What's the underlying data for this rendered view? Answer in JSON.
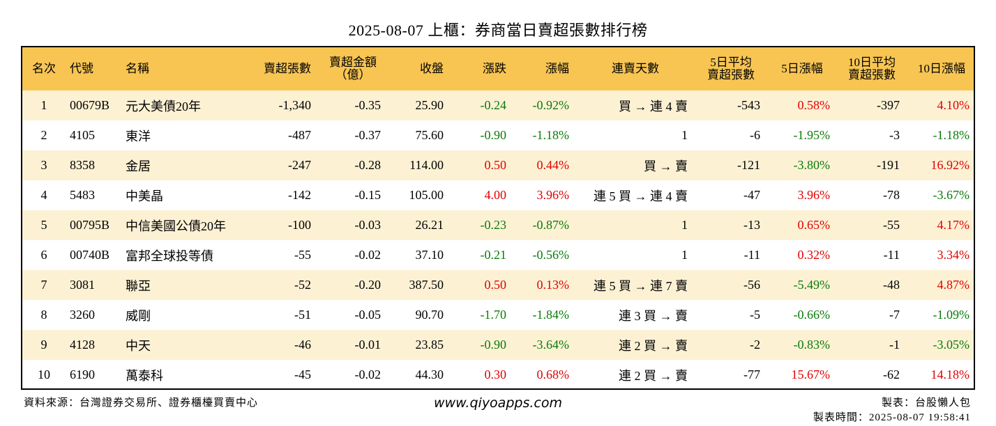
{
  "title": "2025-08-07 上櫃：券商當日賣超張數排行榜",
  "columns": [
    "名次",
    "代號",
    "名稱",
    "賣超張數",
    "賣超金額（億）",
    "收盤",
    "漲跌",
    "漲幅",
    "連賣天數",
    "5日平均 賣超張數",
    "5日漲幅",
    "10日平均 賣超張數",
    "10日漲幅"
  ],
  "header": {
    "rank": "名次",
    "code": "代號",
    "name": "名稱",
    "sell_lots": "賣超張數",
    "sell_amount_1": "賣超金額",
    "sell_amount_2": "（億）",
    "close": "收盤",
    "change": "漲跌",
    "change_pct": "漲幅",
    "streak": "連賣天數",
    "avg5_1": "5日平均",
    "avg5_2": "賣超張數",
    "chg5": "5日漲幅",
    "avg10_1": "10日平均",
    "avg10_2": "賣超張數",
    "chg10": "10日漲幅"
  },
  "rows": [
    {
      "rank": "1",
      "code": "00679B",
      "name": "元大美債20年",
      "sell_lots": "-1,340",
      "sell_amount": "-0.35",
      "close": "25.90",
      "change": "-0.24",
      "change_pct": "-0.92%",
      "streak": "買 → 連 4 賣",
      "avg5": "-543",
      "chg5": "0.58%",
      "avg10": "-397",
      "chg10": "4.10%"
    },
    {
      "rank": "2",
      "code": "4105",
      "name": "東洋",
      "sell_lots": "-487",
      "sell_amount": "-0.37",
      "close": "75.60",
      "change": "-0.90",
      "change_pct": "-1.18%",
      "streak": "1",
      "avg5": "-6",
      "chg5": "-1.95%",
      "avg10": "-3",
      "chg10": "-1.18%"
    },
    {
      "rank": "3",
      "code": "8358",
      "name": "金居",
      "sell_lots": "-247",
      "sell_amount": "-0.28",
      "close": "114.00",
      "change": "0.50",
      "change_pct": "0.44%",
      "streak": "買 → 賣",
      "avg5": "-121",
      "chg5": "-3.80%",
      "avg10": "-191",
      "chg10": "16.92%"
    },
    {
      "rank": "4",
      "code": "5483",
      "name": "中美晶",
      "sell_lots": "-142",
      "sell_amount": "-0.15",
      "close": "105.00",
      "change": "4.00",
      "change_pct": "3.96%",
      "streak": "連 5 買 → 連 4 賣",
      "avg5": "-47",
      "chg5": "3.96%",
      "avg10": "-78",
      "chg10": "-3.67%"
    },
    {
      "rank": "5",
      "code": "00795B",
      "name": "中信美國公債20年",
      "sell_lots": "-100",
      "sell_amount": "-0.03",
      "close": "26.21",
      "change": "-0.23",
      "change_pct": "-0.87%",
      "streak": "1",
      "avg5": "-13",
      "chg5": "0.65%",
      "avg10": "-55",
      "chg10": "4.17%"
    },
    {
      "rank": "6",
      "code": "00740B",
      "name": "富邦全球投等債",
      "sell_lots": "-55",
      "sell_amount": "-0.02",
      "close": "37.10",
      "change": "-0.21",
      "change_pct": "-0.56%",
      "streak": "1",
      "avg5": "-11",
      "chg5": "0.32%",
      "avg10": "-11",
      "chg10": "3.34%"
    },
    {
      "rank": "7",
      "code": "3081",
      "name": "聯亞",
      "sell_lots": "-52",
      "sell_amount": "-0.20",
      "close": "387.50",
      "change": "0.50",
      "change_pct": "0.13%",
      "streak": "連 5 買 → 連 7 賣",
      "avg5": "-56",
      "chg5": "-5.49%",
      "avg10": "-48",
      "chg10": "4.87%"
    },
    {
      "rank": "8",
      "code": "3260",
      "name": "威剛",
      "sell_lots": "-51",
      "sell_amount": "-0.05",
      "close": "90.70",
      "change": "-1.70",
      "change_pct": "-1.84%",
      "streak": "連 3 買 → 賣",
      "avg5": "-5",
      "chg5": "-0.66%",
      "avg10": "-7",
      "chg10": "-1.09%"
    },
    {
      "rank": "9",
      "code": "4128",
      "name": "中天",
      "sell_lots": "-46",
      "sell_amount": "-0.01",
      "close": "23.85",
      "change": "-0.90",
      "change_pct": "-3.64%",
      "streak": "連 2 買 → 賣",
      "avg5": "-2",
      "chg5": "-0.83%",
      "avg10": "-1",
      "chg10": "-3.05%"
    },
    {
      "rank": "10",
      "code": "6190",
      "name": "萬泰科",
      "sell_lots": "-45",
      "sell_amount": "-0.02",
      "close": "44.30",
      "change": "0.30",
      "change_pct": "0.68%",
      "streak": "連 2 買 → 賣",
      "avg5": "-77",
      "chg5": "15.67%",
      "avg10": "-62",
      "chg10": "14.18%"
    }
  ],
  "footer": {
    "source": "資料來源：台灣證券交易所、證券櫃檯買賣中心",
    "website": "www.qiyoapps.com",
    "author": "製表：台股懶人包",
    "made_time": "製表時間：2025-08-07 19:58:41"
  },
  "colors": {
    "header_bg": "#f8c553",
    "row_alt_bg": "#fdf1d4",
    "positive": "#e00000",
    "negative": "#0a7a0a"
  }
}
